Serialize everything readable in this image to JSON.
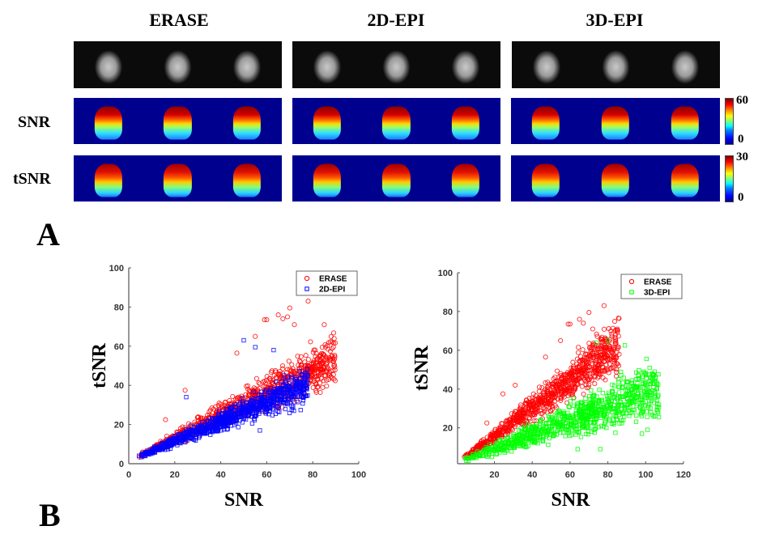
{
  "panel_a": {
    "letter": "A",
    "columns": [
      "ERASE",
      "2D-EPI",
      "3D-EPI"
    ],
    "rows": [
      {
        "label": "",
        "type": "magnitude"
      },
      {
        "label": "SNR",
        "type": "colormap",
        "colorbar": {
          "max": "60",
          "min": "0"
        }
      },
      {
        "label": "tSNR",
        "type": "colormap",
        "colorbar": {
          "max": "30",
          "min": "0"
        }
      }
    ],
    "slices_per_panel": 3,
    "colormap": "jet"
  },
  "panel_b": {
    "letter": "B"
  },
  "chart_data": [
    {
      "type": "scatter",
      "title": "",
      "xlabel": "SNR",
      "ylabel": "tSNR",
      "xlim": [
        0,
        100
      ],
      "ylim": [
        0,
        100
      ],
      "xticks": [
        "0",
        "20",
        "40",
        "60",
        "80",
        "100"
      ],
      "yticks": [
        "0",
        "20",
        "40",
        "60",
        "80",
        "100"
      ],
      "grid": false,
      "legend_position": "top-right",
      "series": [
        {
          "name": "ERASE",
          "marker": "circle",
          "color": "#ff0000",
          "trend": {
            "slope": 0.58,
            "intercept": 1.5,
            "x_range": [
              4,
              90
            ],
            "spread": 0.22
          },
          "outliers": [
            [
              78,
              83
            ],
            [
              70,
              79.5
            ],
            [
              65,
              76
            ],
            [
              67,
              74
            ],
            [
              59,
              73.5
            ],
            [
              60,
              73.5
            ],
            [
              85,
              71
            ],
            [
              72,
              71
            ],
            [
              69,
              75
            ],
            [
              89,
              45.5
            ],
            [
              84,
              54
            ],
            [
              86,
              51
            ],
            [
              82,
              39
            ],
            [
              47,
              56.5
            ],
            [
              55,
              65
            ],
            [
              24.5,
              37.5
            ],
            [
              16,
              22.5
            ]
          ]
        },
        {
          "name": "2D-EPI",
          "marker": "square",
          "color": "#0000ff",
          "trend": {
            "slope": 0.5,
            "intercept": 1.5,
            "x_range": [
              4,
              78
            ],
            "spread": 0.2
          },
          "outliers": [
            [
              50,
              63
            ],
            [
              55,
              59.5
            ],
            [
              63,
              58
            ],
            [
              25,
              34
            ],
            [
              57,
              17
            ],
            [
              75,
              37
            ],
            [
              76,
              34
            ]
          ]
        }
      ]
    },
    {
      "type": "scatter",
      "title": "",
      "xlabel": "SNR",
      "ylabel": "tSNR",
      "xlim": [
        0.5,
        120
      ],
      "ylim": [
        1.5,
        100
      ],
      "xticks": [
        "20",
        "40",
        "60",
        "80",
        "100",
        "120"
      ],
      "yticks": [
        "20",
        "40",
        "60",
        "80",
        "100"
      ],
      "grid": false,
      "legend_position": "top-right",
      "series": [
        {
          "name": "ERASE",
          "marker": "circle",
          "color": "#ff0000",
          "trend": {
            "slope": 0.72,
            "intercept": 1.5,
            "x_range": [
              4,
              86
            ],
            "spread": 0.2
          },
          "outliers": [
            [
              78,
              83
            ],
            [
              70,
              79.5
            ],
            [
              65,
              76
            ],
            [
              67,
              74
            ],
            [
              59,
              73.5
            ],
            [
              60,
              73.5
            ],
            [
              85,
              71
            ],
            [
              72,
              71
            ],
            [
              55,
              65
            ],
            [
              47,
              56.5
            ],
            [
              24.5,
              37.5
            ],
            [
              16,
              22.5
            ],
            [
              31,
              42
            ]
          ]
        },
        {
          "name": "3D-EPI",
          "marker": "square",
          "color": "#00ff00",
          "trend": {
            "slope": 0.36,
            "intercept": 2,
            "x_range": [
              4,
              107
            ],
            "spread": 0.32
          },
          "outliers": [
            [
              80,
              65
            ],
            [
              89,
              62.5
            ],
            [
              74,
              64
            ],
            [
              95,
              48.5
            ],
            [
              106,
              41
            ],
            [
              107,
              25.5
            ],
            [
              102,
              36.5
            ],
            [
              101,
              19
            ],
            [
              98,
              17
            ],
            [
              76,
              9
            ],
            [
              64,
              9
            ]
          ]
        }
      ]
    }
  ]
}
